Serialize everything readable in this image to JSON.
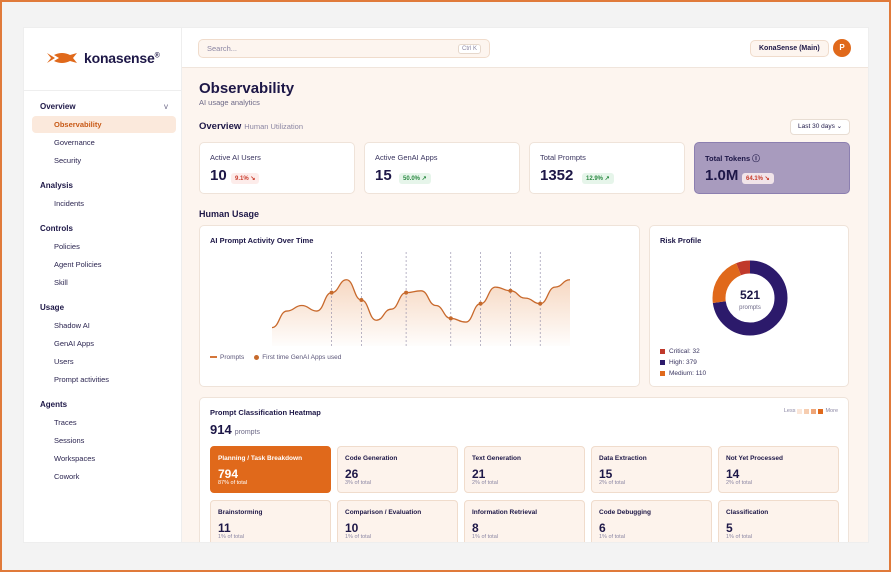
{
  "brand": {
    "name": "konasense",
    "mark": "®"
  },
  "search": {
    "placeholder": "Search...",
    "shortcut": "Ctrl K"
  },
  "org_selector": "KonaSense (Main)",
  "user_avatar": "P",
  "sidebar": {
    "sections": [
      {
        "title": "Overview",
        "chevron": "v",
        "items": [
          "Observability",
          "Governance",
          "Security"
        ]
      },
      {
        "title": "Analysis",
        "items": [
          "Incidents"
        ]
      },
      {
        "title": "Controls",
        "items": [
          "Policies",
          "Agent Policies",
          "Skill"
        ]
      },
      {
        "title": "Usage",
        "items": [
          "Shadow AI",
          "GenAI Apps",
          "Users",
          "Prompt activities"
        ]
      },
      {
        "title": "Agents",
        "items": [
          "Traces",
          "Sessions",
          "Workspaces",
          "Cowork"
        ]
      }
    ],
    "active_item": "Observability"
  },
  "page": {
    "title": "Observability",
    "subtitle": "AI usage analytics"
  },
  "overview": {
    "title": "Overview",
    "subtitle": "Human Utilization",
    "range_label": "Last 30 days ⌄",
    "kpis": [
      {
        "label": "Active AI Users",
        "value": "10",
        "change": "9.1% ↘",
        "trend": "down"
      },
      {
        "label": "Active GenAI Apps",
        "value": "15",
        "change": "50.0% ↗",
        "trend": "up"
      },
      {
        "label": "Total Prompts",
        "value": "1352",
        "change": "12.9% ↗",
        "trend": "up"
      },
      {
        "label": "Total Tokens ⓘ",
        "value": "1.0M",
        "change": "64.1% ↘",
        "trend": "down"
      }
    ]
  },
  "human_usage": {
    "title": "Human Usage"
  },
  "activity_chart": {
    "title": "AI Prompt Activity Over Time",
    "legend": [
      "Prompts",
      "First time GenAI Apps used"
    ],
    "colors": {
      "line": "#c8692c",
      "fill": "#f6d6bf",
      "marker": "#c66a2c"
    }
  },
  "chart_data": {
    "type": "area",
    "title": "AI Prompt Activity Over Time",
    "x": [
      0,
      1,
      2,
      3,
      4,
      5,
      6,
      7,
      8,
      9,
      10,
      11,
      12,
      13,
      14,
      15,
      16,
      17,
      18,
      19,
      20
    ],
    "series": [
      {
        "name": "Prompts",
        "values": [
          20,
          38,
          44,
          38,
          58,
          72,
          50,
          28,
          40,
          58,
          60,
          44,
          30,
          26,
          46,
          64,
          60,
          52,
          46,
          64,
          72
        ]
      }
    ],
    "markers": {
      "name": "First time GenAI Apps used",
      "x": [
        4,
        6,
        9,
        12,
        14,
        16,
        18
      ]
    },
    "ylim": [
      0,
      100
    ],
    "grid": false
  },
  "risk_profile": {
    "title": "Risk Profile",
    "total": "521",
    "total_label": "prompts",
    "segments": [
      {
        "label": "Critical: 32",
        "value": 32,
        "color": "#c0392b"
      },
      {
        "label": "High: 379",
        "value": 379,
        "color": "#2c1a6b"
      },
      {
        "label": "Medium: 110",
        "value": 110,
        "color": "#e0691b"
      }
    ]
  },
  "heatmap": {
    "title": "Prompt Classification Heatmap",
    "total": "914",
    "total_label": "prompts",
    "legend_less": "Less",
    "legend_more": "More",
    "legend_colors": [
      "#fbe6d8",
      "#f6cdb0",
      "#efa678",
      "#e0691b"
    ],
    "tiles": [
      {
        "name": "Planning / Task Breakdown",
        "value": "794",
        "share": "87% of total",
        "hot": true
      },
      {
        "name": "Code Generation",
        "value": "26",
        "share": "3% of total",
        "hot": false
      },
      {
        "name": "Text Generation",
        "value": "21",
        "share": "2% of total",
        "hot": false
      },
      {
        "name": "Data Extraction",
        "value": "15",
        "share": "2% of total",
        "hot": false
      },
      {
        "name": "Not Yet Processed",
        "value": "14",
        "share": "2% of total",
        "hot": false
      },
      {
        "name": "Brainstorming",
        "value": "11",
        "share": "1% of total",
        "hot": false
      },
      {
        "name": "Comparison / Evaluation",
        "value": "10",
        "share": "1% of total",
        "hot": false
      },
      {
        "name": "Information Retrieval",
        "value": "8",
        "share": "1% of total",
        "hot": false
      },
      {
        "name": "Code Debugging",
        "value": "6",
        "share": "1% of total",
        "hot": false
      },
      {
        "name": "Classification",
        "value": "5",
        "share": "1% of total",
        "hot": false
      }
    ]
  }
}
